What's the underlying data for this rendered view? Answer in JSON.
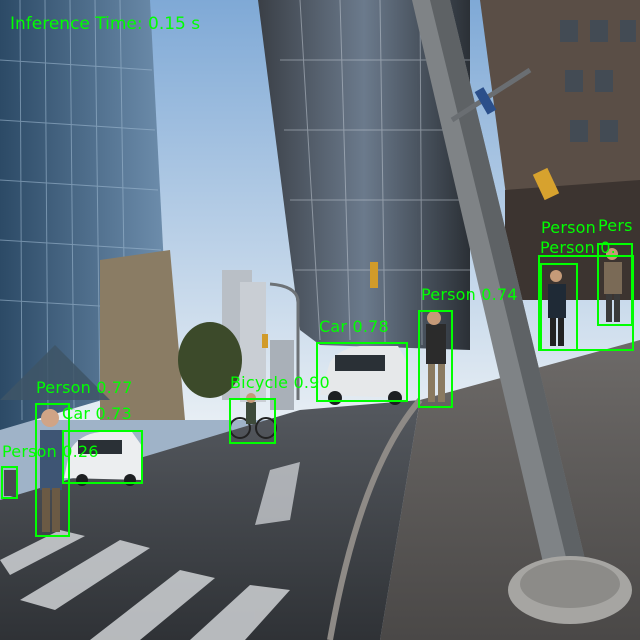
{
  "hud": {
    "inference_text": "Inference Time: 0.15 s"
  },
  "detections": [
    {
      "label": "Person 0.77",
      "category": "person",
      "confidence": 0.77
    },
    {
      "label": "Car 0.73",
      "category": "car",
      "confidence": 0.73
    },
    {
      "label": "Person 0.26",
      "category": "person",
      "confidence": 0.26
    },
    {
      "label": "Bicycle 0.90",
      "category": "bicycle",
      "confidence": 0.9
    },
    {
      "label": "Car 0.78",
      "category": "car",
      "confidence": 0.78
    },
    {
      "label": "Person 0.74",
      "category": "person",
      "confidence": 0.74
    },
    {
      "label": "Person",
      "category": "person",
      "confidence": null
    },
    {
      "label": "Person 0.",
      "category": "person",
      "confidence": null
    },
    {
      "label": "Pers",
      "category": "person",
      "confidence": null
    }
  ],
  "colors": {
    "box": "#00ff00",
    "label": "#00ff00"
  }
}
